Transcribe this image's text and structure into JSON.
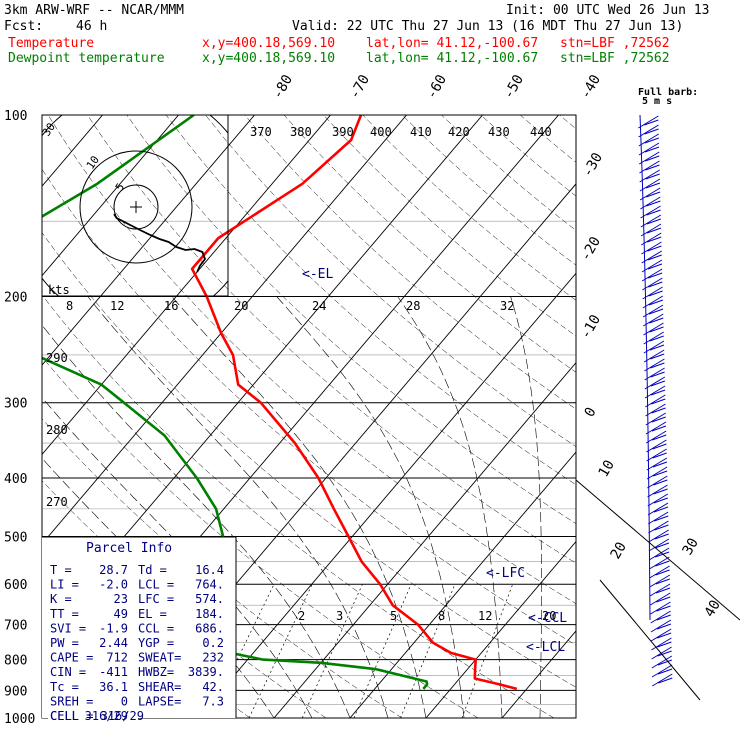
{
  "header": {
    "model": "3km ARW-WRF -- NCAR/MMM",
    "init": "Init: 00 UTC Wed 26 Jun 13",
    "fcst_label": "Fcst:",
    "fcst_value": "46 h",
    "valid": "Valid: 22 UTC Thu 27 Jun 13 (16 MDT Thu 27 Jun 13)",
    "temp_label": "Temperature",
    "dew_label": "Dewpoint temperature",
    "xy": "x,y=400.18,569.10",
    "latlon": "lat,lon= 41.12,-100.67",
    "stn": "stn=LBF ,72562"
  },
  "colors": {
    "temperature": "#ff0000",
    "dewpoint": "#008000",
    "panel_text": "#000080",
    "barbs": "#0000c0"
  },
  "chart_data": {
    "type": "line",
    "subtype": "skew-T log-p sounding",
    "pressure_axis_ticks": [
      "100",
      "200",
      "300",
      "400",
      "500",
      "600",
      "700",
      "800",
      "900",
      "1000"
    ],
    "isotherm_labels": [
      "-80",
      "-70",
      "-60",
      "-50",
      "-40",
      "-30",
      "-20",
      "-10",
      "0",
      "10",
      "20",
      "30",
      "40"
    ],
    "theta_labels": [
      "370",
      "380",
      "390",
      "400",
      "410",
      "420",
      "430",
      "440"
    ],
    "theta_left_labels": [
      "290",
      "280",
      "270"
    ],
    "mixing_ratio_labels": [
      "2",
      "3",
      "5",
      "8",
      "12",
      "20"
    ],
    "hodo_speed_labels": [
      "8",
      "12",
      "16",
      "20",
      "24",
      "28",
      "32"
    ],
    "hodo_ring_labels": [
      "5",
      "10",
      "30"
    ],
    "hodo_unit": "kts",
    "full_barb_label": [
      "Full barb:",
      "5 m s"
    ],
    "level_markers": {
      "el": "<-EL",
      "lfc": "<-LFC",
      "ccl": "<-CCL",
      "lcl": "<-LCL"
    },
    "hodo_track": [
      [
        0,
        0
      ],
      [
        2,
        -4
      ],
      [
        8,
        -8
      ],
      [
        14,
        -12
      ],
      [
        20,
        -16
      ],
      [
        28,
        -21
      ],
      [
        35,
        -25
      ],
      [
        42,
        -28
      ],
      [
        48,
        -33
      ],
      [
        55,
        -36
      ],
      [
        62,
        -35
      ],
      [
        68,
        -38
      ],
      [
        70,
        -45
      ],
      [
        66,
        -52
      ],
      [
        64,
        -58
      ]
    ],
    "series": [
      {
        "name": "Temperature",
        "points": [
          [
            100,
            -56
          ],
          [
            110,
            -54.5
          ],
          [
            130,
            -56
          ],
          [
            160,
            -61
          ],
          [
            180,
            -61
          ],
          [
            200,
            -56
          ],
          [
            230,
            -50
          ],
          [
            250,
            -46
          ],
          [
            280,
            -42
          ],
          [
            300,
            -37
          ],
          [
            350,
            -28
          ],
          [
            400,
            -21
          ],
          [
            450,
            -15.5
          ],
          [
            500,
            -10.5
          ],
          [
            550,
            -6
          ],
          [
            600,
            -1
          ],
          [
            650,
            3
          ],
          [
            700,
            8.5
          ],
          [
            750,
            12.5
          ],
          [
            780,
            16
          ],
          [
            800,
            20
          ],
          [
            830,
            21
          ],
          [
            860,
            22
          ],
          [
            880,
            26
          ],
          [
            895,
            28.7
          ]
        ]
      },
      {
        "name": "Dewpoint temperature",
        "points": [
          [
            100,
            -78
          ],
          [
            130,
            -83
          ],
          [
            160,
            -89
          ],
          [
            190,
            -86
          ],
          [
            200,
            -83
          ],
          [
            220,
            -79
          ],
          [
            250,
            -72
          ],
          [
            280,
            -60
          ],
          [
            300,
            -55
          ],
          [
            340,
            -46
          ],
          [
            400,
            -37
          ],
          [
            450,
            -31
          ],
          [
            500,
            -27
          ],
          [
            550,
            -24
          ],
          [
            600,
            -23
          ],
          [
            650,
            -20
          ],
          [
            700,
            -16
          ],
          [
            750,
            -15
          ],
          [
            780,
            -13
          ],
          [
            800,
            -8
          ],
          [
            810,
            0
          ],
          [
            830,
            8
          ],
          [
            850,
            12
          ],
          [
            870,
            16
          ],
          [
            880,
            16.4
          ],
          [
            895,
            16.4
          ]
        ]
      }
    ]
  },
  "parcel": {
    "title": "Parcel Info",
    "rows": [
      [
        "T  =",
        "28.7",
        "Td =",
        "16.4"
      ],
      [
        "LI =",
        "-2.0",
        "LCL =",
        "764."
      ],
      [
        "K  =",
        "23",
        "LFC =",
        "574."
      ],
      [
        "TT =",
        "49",
        "EL =",
        "184."
      ],
      [
        "SVI =",
        "-1.9",
        "CCL =",
        "686."
      ],
      [
        "PW =",
        "2.44",
        "YGP =",
        "0.2"
      ],
      [
        "CAPE =",
        "712",
        "SWEAT=",
        "232"
      ],
      [
        "CIN =",
        "-411",
        "HWBZ=",
        "3839."
      ],
      [
        "Tc =",
        "36.1",
        "SHEAR=",
        "42."
      ],
      [
        "SREH =",
        "0",
        "LAPSE=",
        "7.3"
      ],
      [
        "CELL =",
        "316/29",
        "",
        ""
      ]
    ]
  }
}
